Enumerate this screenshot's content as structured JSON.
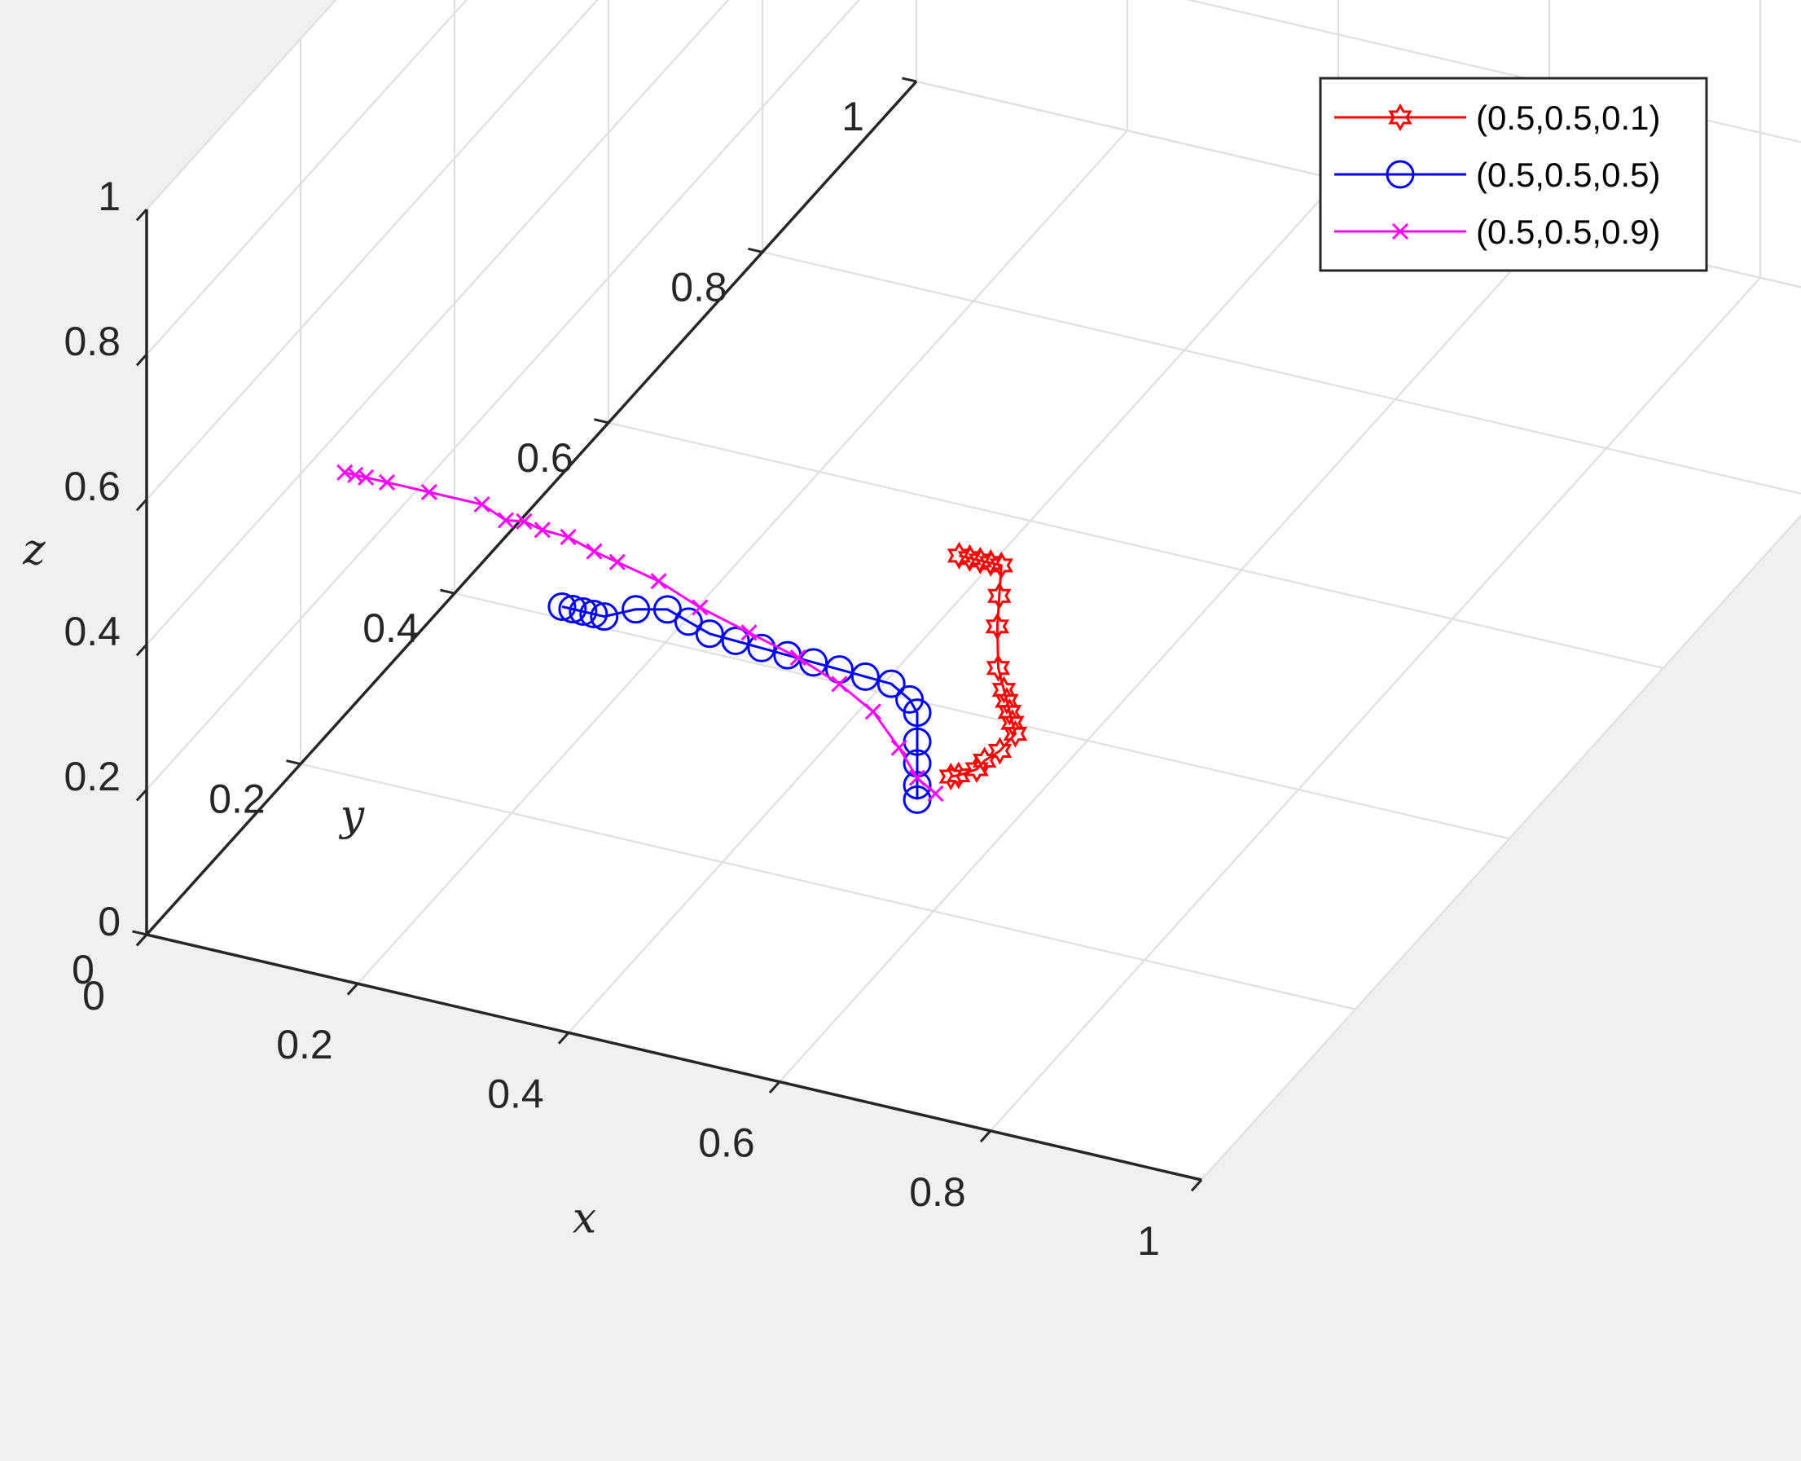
{
  "chart_data": {
    "type": "line3d",
    "title": "",
    "xlabel": "x",
    "ylabel": "y",
    "zlabel": "z",
    "xlim": [
      0,
      1
    ],
    "ylim": [
      0,
      1
    ],
    "zlim": [
      0,
      1
    ],
    "xticks": [
      "0",
      "0.2",
      "0.4",
      "0.6",
      "0.8",
      "1"
    ],
    "yticks": [
      "0",
      "0.2",
      "0.4",
      "0.6",
      "0.8",
      "1"
    ],
    "zticks": [
      "0",
      "0.2",
      "0.4",
      "0.6",
      "0.8",
      "1"
    ],
    "grid": true,
    "legend_position": "top-right",
    "series": [
      {
        "name": "(0.5,0.5,0.1)",
        "color": "#ff0000",
        "marker": "hexagram",
        "points": [
          [
            0.42,
            0.48,
            0.1
          ],
          [
            0.43,
            0.48,
            0.1
          ],
          [
            0.44,
            0.48,
            0.1
          ],
          [
            0.45,
            0.48,
            0.1
          ],
          [
            0.46,
            0.48,
            0.1
          ],
          [
            0.48,
            0.45,
            0.1
          ],
          [
            0.5,
            0.42,
            0.1
          ],
          [
            0.53,
            0.38,
            0.1
          ],
          [
            0.55,
            0.36,
            0.1
          ],
          [
            0.56,
            0.35,
            0.1
          ],
          [
            0.57,
            0.34,
            0.1
          ],
          [
            0.58,
            0.33,
            0.1
          ],
          [
            0.59,
            0.32,
            0.1
          ],
          [
            0.59,
            0.3,
            0.1
          ],
          [
            0.59,
            0.28,
            0.11
          ],
          [
            0.59,
            0.27,
            0.11
          ],
          [
            0.58,
            0.26,
            0.11
          ],
          [
            0.58,
            0.25,
            0.12
          ]
        ]
      },
      {
        "name": "(0.5,0.5,0.5)",
        "color": "#0000ff",
        "marker": "circle",
        "points": [
          [
            0.35,
            0.06,
            0.5
          ],
          [
            0.36,
            0.06,
            0.5
          ],
          [
            0.37,
            0.06,
            0.5
          ],
          [
            0.38,
            0.06,
            0.5
          ],
          [
            0.39,
            0.06,
            0.5
          ],
          [
            0.42,
            0.06,
            0.52
          ],
          [
            0.45,
            0.06,
            0.53
          ],
          [
            0.47,
            0.06,
            0.52
          ],
          [
            0.49,
            0.06,
            0.51
          ],
          [
            0.5,
            0.08,
            0.48
          ],
          [
            0.51,
            0.1,
            0.45
          ],
          [
            0.52,
            0.12,
            0.42
          ],
          [
            0.53,
            0.14,
            0.39
          ],
          [
            0.54,
            0.16,
            0.36
          ],
          [
            0.55,
            0.18,
            0.33
          ],
          [
            0.56,
            0.2,
            0.3
          ],
          [
            0.57,
            0.21,
            0.27
          ],
          [
            0.57,
            0.22,
            0.24
          ],
          [
            0.57,
            0.22,
            0.2
          ],
          [
            0.57,
            0.22,
            0.17
          ],
          [
            0.57,
            0.22,
            0.14
          ],
          [
            0.57,
            0.22,
            0.12
          ]
        ]
      },
      {
        "name": "(0.5,0.5,0.9)",
        "color": "#ff00ff",
        "marker": "x",
        "points": [
          [
            0.29,
            -0.14,
            0.9
          ],
          [
            0.3,
            -0.14,
            0.9
          ],
          [
            0.31,
            -0.14,
            0.9
          ],
          [
            0.33,
            -0.14,
            0.9
          ],
          [
            0.37,
            -0.14,
            0.9
          ],
          [
            0.42,
            -0.14,
            0.9
          ],
          [
            0.45,
            -0.15,
            0.9
          ],
          [
            0.46,
            -0.14,
            0.89
          ],
          [
            0.47,
            -0.13,
            0.87
          ],
          [
            0.48,
            -0.11,
            0.84
          ],
          [
            0.49,
            -0.09,
            0.8
          ],
          [
            0.49,
            -0.06,
            0.75
          ],
          [
            0.5,
            -0.02,
            0.68
          ],
          [
            0.51,
            0.02,
            0.6
          ],
          [
            0.52,
            0.07,
            0.51
          ],
          [
            0.53,
            0.12,
            0.42
          ],
          [
            0.54,
            0.16,
            0.34
          ],
          [
            0.55,
            0.19,
            0.27
          ],
          [
            0.56,
            0.21,
            0.2
          ],
          [
            0.57,
            0.22,
            0.15
          ],
          [
            0.58,
            0.23,
            0.12
          ]
        ]
      }
    ]
  }
}
